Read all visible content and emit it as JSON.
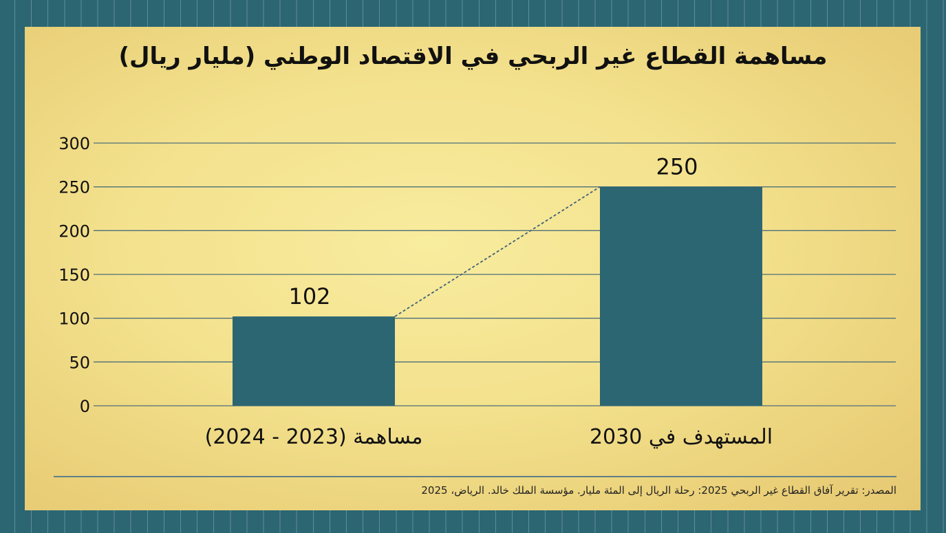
{
  "page": {
    "title": "مساهمة القطاع غير الربحي في الاقتصاد الوطني (مليار ريال)",
    "source": "المصدر: تقرير آفاق القطاع غير الربحي 2025: رحلة الريال إلى المئة مليار. مؤسسة الملك خالد. الرياض، 2025"
  },
  "chart_data": {
    "type": "bar",
    "title": "مساهمة القطاع غير الربحي في الاقتصاد الوطني (مليار ريال)",
    "categories": [
      "مساهمة (2023 - 2024)",
      "المستهدف في 2030"
    ],
    "values": [
      102,
      250
    ],
    "data_labels": [
      "102",
      "250"
    ],
    "ylim": [
      0,
      300
    ],
    "yticks": [
      0,
      50,
      100,
      150,
      200,
      250,
      300
    ],
    "ytick_labels": [
      "0",
      "50",
      "100",
      "150",
      "200",
      "250",
      "300"
    ],
    "xlabel": "",
    "ylabel": "",
    "grid": true,
    "trend_line": "dashed line connecting bar tops",
    "colors": {
      "bar": "#2c6672",
      "background": "#f3e18d",
      "grid": "#4e6f79",
      "frame": "#2c6672"
    }
  }
}
